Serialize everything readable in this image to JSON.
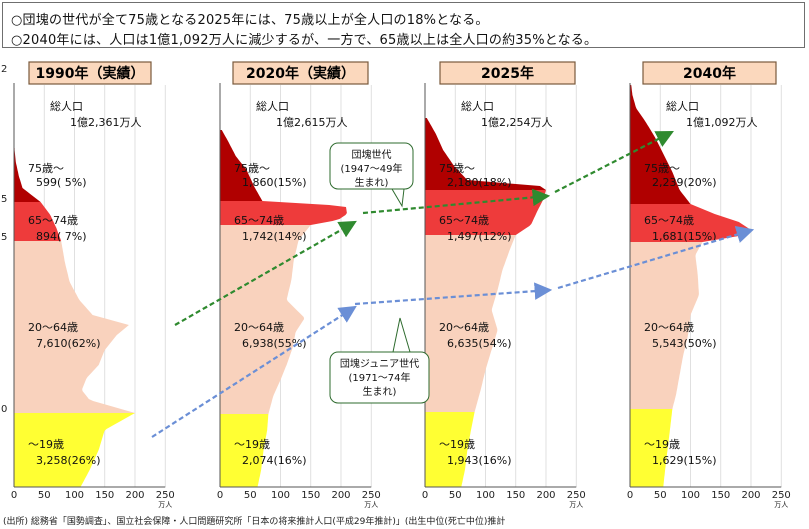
{
  "header": {
    "line1": "○団塊の世代が全て75歳となる2025年には、75歳以上が全人口の18%となる。",
    "line2": "○2040年には、人口は1億1,092万人に減少するが、一方で、65歳以上は全人口の約35%となる。"
  },
  "source_note": "(出所) 総務省「国勢調査」、国立社会保障・人口問題研究所「日本の将来推計人口(平成29年推計)」(出生中位(死亡中位)推計",
  "colors": {
    "age75plus": "#b00000",
    "age65_74": "#ee3b3b",
    "age20_64": "#f9d2bd",
    "age0_19": "#ffff33",
    "title_fill": "#fbd8bd",
    "arrow_green": "#2f8a2f",
    "arrow_blue": "#6b8fd6"
  },
  "chart_data": {
    "type": "area",
    "total_label": "総人口",
    "axis": {
      "ticks": [
        "0",
        "50",
        "100",
        "150",
        "200",
        "250"
      ],
      "unit": "万人",
      "xlim": [
        0,
        250
      ]
    },
    "panels": [
      {
        "title": "1990年（実績）",
        "total": "1億2,361万人",
        "groups": [
          {
            "age": "75歳～",
            "value": "599( 5%)"
          },
          {
            "age": "65～74歳",
            "value": "894( 7%)"
          },
          {
            "age": "20～64歳",
            "value": "7,610(62%)"
          },
          {
            "age": "～19歳",
            "value": "3,258(26%)"
          }
        ]
      },
      {
        "title": "2020年（実績）",
        "total": "1億2,615万人",
        "groups": [
          {
            "age": "75歳～",
            "value": "1,860(15%)"
          },
          {
            "age": "65～74歳",
            "value": "1,742(14%)"
          },
          {
            "age": "20～64歳",
            "value": "6,938(55%)"
          },
          {
            "age": "～19歳",
            "value": "2,074(16%)"
          }
        ]
      },
      {
        "title": "2025年",
        "total": "1億2,254万人",
        "groups": [
          {
            "age": "75歳～",
            "value": "2,180(18%)"
          },
          {
            "age": "65～74歳",
            "value": "1,497(12%)"
          },
          {
            "age": "20～64歳",
            "value": "6,635(54%)"
          },
          {
            "age": "～19歳",
            "value": "1,943(16%)"
          }
        ]
      },
      {
        "title": "2040年",
        "total": "1億1,092万人",
        "groups": [
          {
            "age": "75歳～",
            "value": "2,239(20%)"
          },
          {
            "age": "65～74歳",
            "value": "1,681(15%)"
          },
          {
            "age": "20～64歳",
            "value": "5,543(50%)"
          },
          {
            "age": "～19歳",
            "value": "1,629(15%)"
          }
        ]
      }
    ],
    "annotations": {
      "dankai": [
        "団塊世代",
        "(1947～49年",
        "生まれ)"
      ],
      "dankai_junior": [
        "団塊ジュニア世代",
        "(1971～74年",
        "生まれ)"
      ]
    },
    "left_axis_marks": [
      "2",
      "5",
      "5",
      "0"
    ]
  }
}
